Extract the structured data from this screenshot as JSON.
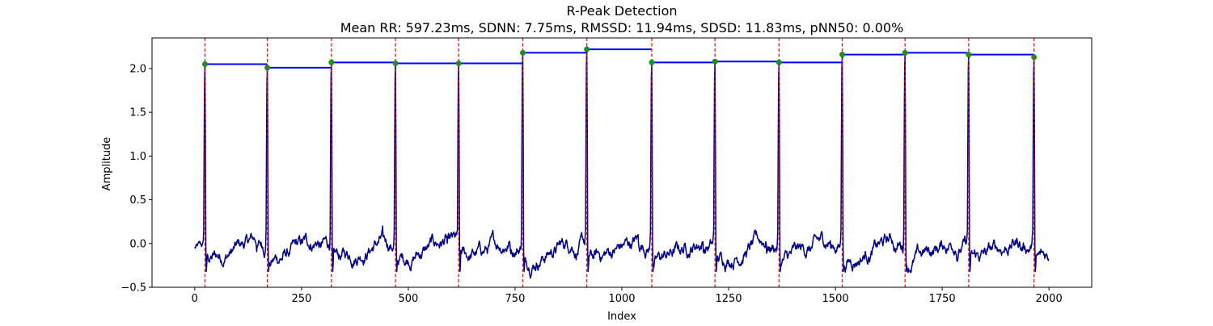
{
  "chart_data": {
    "type": "line",
    "title": "R-Peak Detection",
    "subtitle": "Mean RR: 597.23ms, SDNN: 7.75ms, RMSSD: 11.94ms, SDSD: 11.83ms, pNN50: 0.00%",
    "xlabel": "Index",
    "ylabel": "Amplitude",
    "xlim": [
      -100,
      2100
    ],
    "ylim": [
      -0.5,
      2.35
    ],
    "xticks": [
      0,
      250,
      500,
      750,
      1000,
      1250,
      1500,
      1750,
      2000
    ],
    "yticks": [
      -0.5,
      0.0,
      0.5,
      1.0,
      1.5,
      2.0
    ],
    "grid": false,
    "colors": {
      "signal": "#00008b",
      "peak_marker": "#228b22",
      "peak_line": "#ff0000",
      "rr_step": "#0000ff"
    },
    "signal": {
      "n": 2000,
      "baseline_range": [
        -0.35,
        0.15
      ]
    },
    "peaks": [
      {
        "x": 24,
        "y": 2.05
      },
      {
        "x": 170,
        "y": 2.01
      },
      {
        "x": 320,
        "y": 2.07
      },
      {
        "x": 470,
        "y": 2.06
      },
      {
        "x": 618,
        "y": 2.06
      },
      {
        "x": 768,
        "y": 2.18
      },
      {
        "x": 918,
        "y": 2.22
      },
      {
        "x": 1070,
        "y": 2.07
      },
      {
        "x": 1218,
        "y": 2.08
      },
      {
        "x": 1368,
        "y": 2.07
      },
      {
        "x": 1516,
        "y": 2.16
      },
      {
        "x": 1663,
        "y": 2.18
      },
      {
        "x": 1812,
        "y": 2.16
      },
      {
        "x": 1965,
        "y": 2.13
      }
    ]
  }
}
